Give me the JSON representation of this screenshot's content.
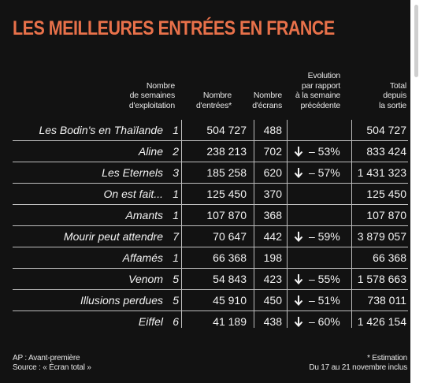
{
  "title": "LES MEILLEURES ENTRÉES EN FRANCE",
  "headers": {
    "weeks": [
      "Nombre",
      "de semaines",
      "d'exploitation"
    ],
    "entries": [
      "Nombre",
      "d'entrées*"
    ],
    "screens": [
      "Nombre",
      "d'écrans"
    ],
    "evolution": [
      "Evolution",
      "par rapport",
      "à la semaine",
      "précédente"
    ],
    "total": [
      "Total",
      "depuis",
      "la sortie"
    ]
  },
  "rows": [
    {
      "title": "Les Bodin's en Thaïlande",
      "weeks": "1",
      "entries": "504 727",
      "screens": "488",
      "evolution": "",
      "total": "504 727"
    },
    {
      "title": "Aline",
      "weeks": "2",
      "entries": "238 213",
      "screens": "702",
      "evolution": "– 53%",
      "total": "833 424"
    },
    {
      "title": "Les Eternels",
      "weeks": "3",
      "entries": "185 258",
      "screens": "620",
      "evolution": "– 57%",
      "total": "1 431 323"
    },
    {
      "title": "On est fait...",
      "weeks": "1",
      "entries": "125 450",
      "screens": "370",
      "evolution": "",
      "total": "125 450"
    },
    {
      "title": "Amants",
      "weeks": "1",
      "entries": "107 870",
      "screens": "368",
      "evolution": "",
      "total": "107 870"
    },
    {
      "title": "Mourir peut attendre",
      "weeks": "7",
      "entries": "70 647",
      "screens": "442",
      "evolution": "– 59%",
      "total": "3 879 057"
    },
    {
      "title": "Affamés",
      "weeks": "1",
      "entries": "66 368",
      "screens": "198",
      "evolution": "",
      "total": "66 368"
    },
    {
      "title": "Venom",
      "weeks": "5",
      "entries": "54 843",
      "screens": "423",
      "evolution": "– 55%",
      "total": "1 578 663"
    },
    {
      "title": "Illusions perdues",
      "weeks": "5",
      "entries": "45 910",
      "screens": "450",
      "evolution": "– 51%",
      "total": "738 011"
    },
    {
      "title": "Eiffel",
      "weeks": "6",
      "entries": "41 189",
      "screens": "438",
      "evolution": "– 60%",
      "total": "1 426 154"
    }
  ],
  "evolution_icon": "arrow-down-icon",
  "footer": {
    "left": [
      "AP : Avant-première",
      "Source : « Écran total »"
    ],
    "right": [
      "* Estimation",
      "Du 17 au 21 novembre inclus"
    ]
  },
  "colors": {
    "background": "#121212",
    "title": "#e8714a",
    "text": "#f2f2f2",
    "divider": "#bdbdbd"
  }
}
